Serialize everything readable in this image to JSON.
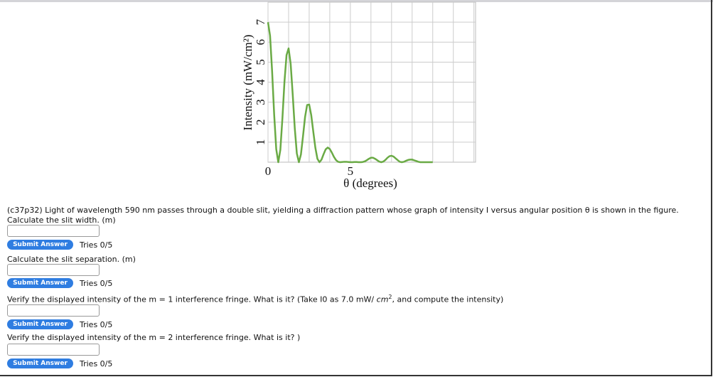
{
  "chart_data": {
    "type": "line",
    "color": "#6aaa45",
    "grid": true,
    "xlabel": "θ (degrees)",
    "ylabel": "Intensity (mW/cm²)",
    "xlim": [
      0,
      12.6
    ],
    "ylim": [
      0,
      8
    ],
    "xticks": [
      0,
      5
    ],
    "yticks": [
      1,
      2,
      3,
      4,
      5,
      6,
      7
    ],
    "xgrid": [
      1.25,
      2.5,
      3.75,
      6.25,
      7.5,
      8.75,
      10,
      11.25,
      12.5
    ],
    "x": [
      0,
      0.125,
      0.25,
      0.375,
      0.5,
      0.625,
      0.75,
      0.875,
      1,
      1.125,
      1.25,
      1.375,
      1.5,
      1.625,
      1.75,
      1.875,
      2,
      2.125,
      2.25,
      2.375,
      2.5,
      2.625,
      2.75,
      2.875,
      3,
      3.125,
      3.25,
      3.375,
      3.5,
      3.625,
      3.75,
      3.875,
      4,
      4.125,
      4.25,
      4.375,
      4.5,
      4.625,
      4.75,
      4.875,
      5,
      5.125,
      5.25,
      5.375,
      5.5,
      5.625,
      5.75,
      5.875,
      6,
      6.125,
      6.25,
      6.375,
      6.5,
      6.625,
      6.75,
      6.875,
      7,
      7.125,
      7.25,
      7.375,
      7.5,
      7.625,
      7.75,
      7.875,
      8,
      8.125,
      8.25,
      8.375,
      8.5,
      8.625,
      8.75,
      8.875,
      9,
      9.125,
      9.25,
      9.375,
      9.5,
      9.625,
      9.75,
      9.875,
      10
    ],
    "values": [
      7,
      6.32,
      4.54,
      2.37,
      0.65,
      0,
      0.62,
      2.19,
      4.02,
      5.35,
      5.69,
      4.92,
      3.39,
      1.7,
      0.44,
      0,
      0.39,
      1.3,
      2.26,
      2.86,
      2.88,
      2.35,
      1.52,
      0.72,
      0.17,
      0,
      0.13,
      0.4,
      0.64,
      0.73,
      0.66,
      0.48,
      0.27,
      0.11,
      0.02,
      0,
      0.01,
      0.02,
      0.02,
      0.01,
      0,
      0,
      0.01,
      0.01,
      0,
      0,
      0.01,
      0.04,
      0.1,
      0.17,
      0.22,
      0.22,
      0.17,
      0.1,
      0.03,
      0,
      0.03,
      0.11,
      0.22,
      0.3,
      0.32,
      0.28,
      0.19,
      0.1,
      0.02,
      0,
      0.02,
      0.07,
      0.11,
      0.13,
      0.13,
      0.09,
      0.06,
      0.02,
      0,
      0,
      0,
      0,
      0,
      0,
      0
    ]
  },
  "problem": "(c37p32) Light of wavelength 590 nm passes through a double slit, yielding a diffraction pattern whose graph of intensity I versus angular position θ is shown in the figure.",
  "questions": [
    {
      "prompt": "Calculate the slit width. (m)",
      "button": "Submit Answer",
      "tries": "Tries 0/5"
    },
    {
      "prompt": "Calculate the slit separation. (m)",
      "button": "Submit Answer",
      "tries": "Tries 0/5"
    },
    {
      "prompt_parts": [
        "Verify the displayed intensity of the m = 1 interference fringe. What is it? (Take I0 as 7.0 mW/ ",
        "cm",
        "2",
        ", and compute the intensity)"
      ],
      "button": "Submit Answer",
      "tries": "Tries 0/5"
    },
    {
      "prompt": "Verify the displayed intensity of the m = 2 interference fringe. What is it? )",
      "button": "Submit Answer",
      "tries": "Tries 0/5"
    }
  ]
}
